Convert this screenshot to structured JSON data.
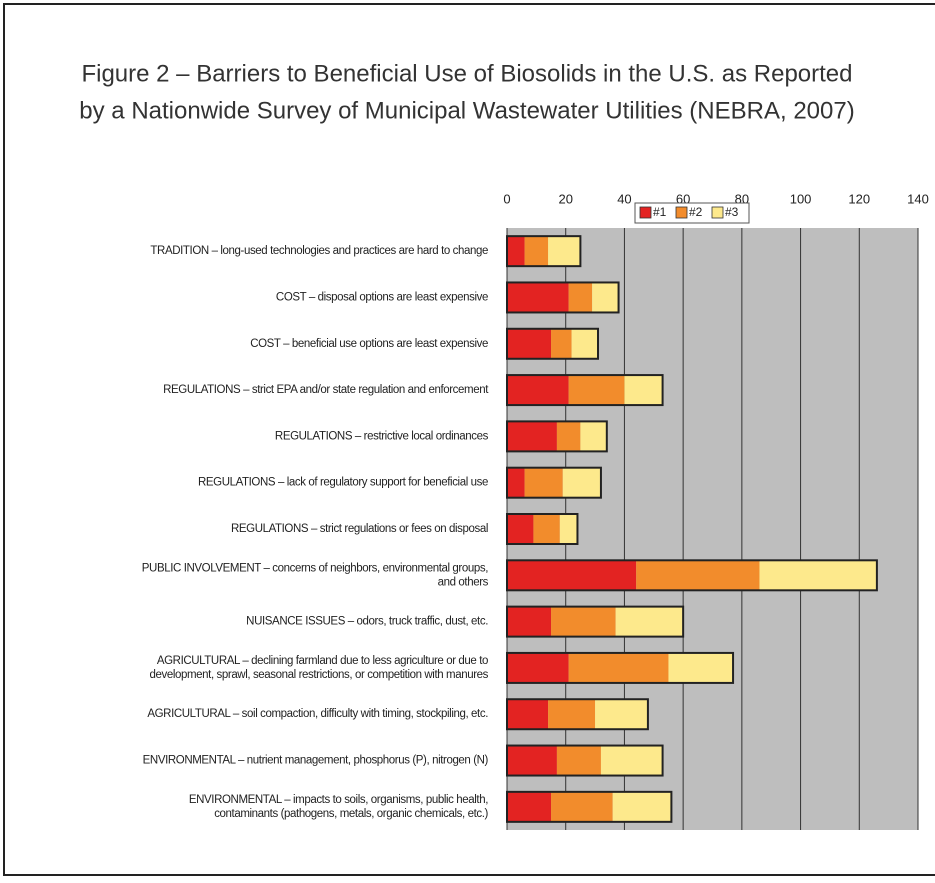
{
  "chart_data": {
    "type": "stacked_barh",
    "title": "Figure 2 – Barriers to Beneficial Use of Biosolids in the U.S. as Reported\nby a Nationwide Survey of Municipal Wastewater Utilities (NEBRA, 2007)",
    "categories": [
      "TRADITION – long-used technologies and practices are hard to change",
      "COST – disposal options are least expensive",
      "COST – beneficial use options are least expensive",
      "REGULATIONS – strict EPA and/or state regulation and enforcement",
      "REGULATIONS – restrictive local ordinances",
      "REGULATIONS – lack of regulatory support for beneficial use",
      "REGULATIONS – strict regulations or fees on disposal",
      "PUBLIC INVOLVEMENT – concerns of neighbors, environmental groups,\nand others",
      "NUISANCE ISSUES – odors, truck traffic, dust, etc.",
      "AGRICULTURAL – declining farmland due to less agriculture or due to\ndevelopment, sprawl, seasonal restrictions, or competition with manures",
      "AGRICULTURAL – soil compaction, difficulty with timing, stockpiling, etc.",
      "ENVIRONMENTAL – nutrient management, phosphorus (P), nitrogen (N)",
      "ENVIRONMENTAL – impacts to soils, organisms, public health,\ncontaminants (pathogens, metals, organic chemicals, etc.)"
    ],
    "series": [
      {
        "name": "#1",
        "color": "#e32322",
        "values": [
          6,
          21,
          15,
          21,
          17,
          6,
          9,
          44,
          15,
          21,
          14,
          17,
          15
        ]
      },
      {
        "name": "#2",
        "color": "#f28c2c",
        "values": [
          8,
          8,
          7,
          19,
          8,
          13,
          9,
          42,
          22,
          34,
          16,
          15,
          21
        ]
      },
      {
        "name": "#3",
        "color": "#fde98c",
        "values": [
          11,
          9,
          9,
          13,
          9,
          13,
          6,
          40,
          23,
          22,
          18,
          21,
          20
        ]
      }
    ],
    "xlim": [
      0,
      140
    ],
    "xticks": [
      0,
      20,
      40,
      60,
      80,
      100,
      120,
      140
    ],
    "grid": true,
    "legend": "top"
  }
}
